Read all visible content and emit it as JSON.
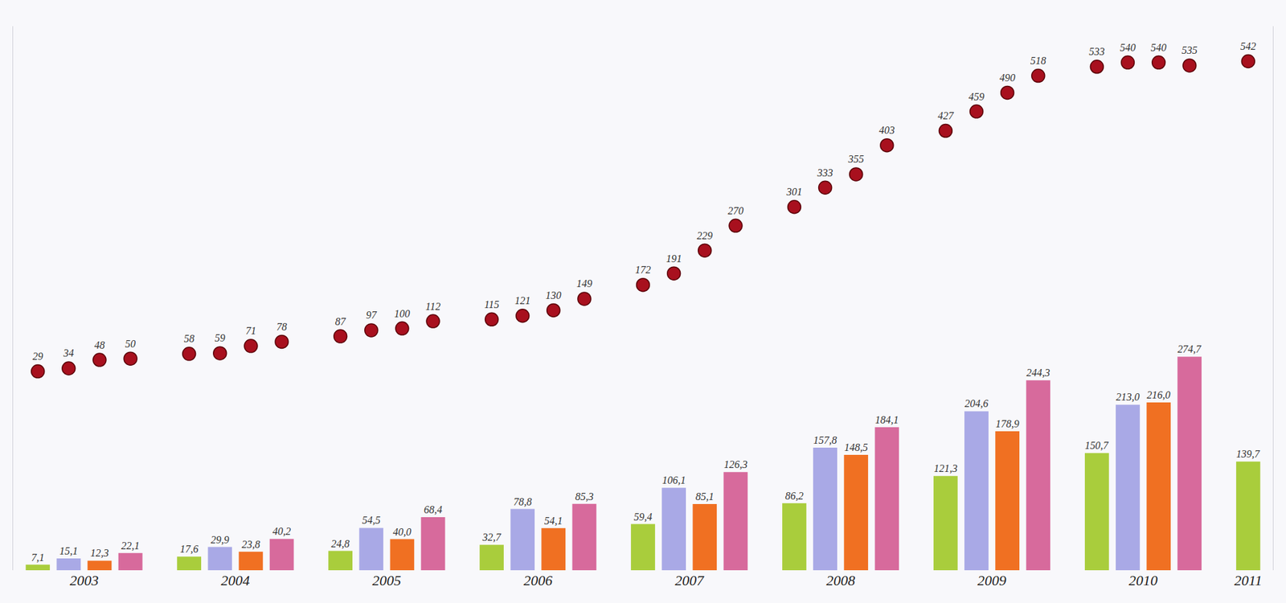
{
  "chart_data": {
    "type": "bar",
    "categories": [
      null,
      "2003",
      null,
      null,
      null,
      "2004",
      null,
      null,
      null,
      "2005",
      null,
      null,
      null,
      "2006",
      null,
      null,
      null,
      "2007",
      null,
      null,
      null,
      "2008",
      null,
      null,
      null,
      "2009",
      null,
      null,
      null,
      "2010",
      null,
      null,
      "2011"
    ],
    "series": [
      {
        "type": "bar",
        "colors": [
          "#a9cd3c",
          "#a9a9e6",
          "#f07022",
          "#d76a9c",
          "#a9cd3c",
          "#a9a9e6",
          "#f07022",
          "#d76a9c",
          "#a9cd3c",
          "#a9a9e6",
          "#f07022",
          "#d76a9c",
          "#a9cd3c",
          "#a9a9e6",
          "#f07022",
          "#d76a9c",
          "#a9cd3c",
          "#a9a9e6",
          "#f07022",
          "#d76a9c",
          "#a9cd3c",
          "#a9a9e6",
          "#f07022",
          "#d76a9c",
          "#a9cd3c",
          "#a9a9e6",
          "#f07022",
          "#d76a9c",
          "#a9cd3c",
          "#a9a9e6",
          "#f07022",
          "#d76a9c",
          "#a9cd3c"
        ],
        "values": [
          7.1,
          15.1,
          12.3,
          22.1,
          17.6,
          29.9,
          23.8,
          40.2,
          24.8,
          54.5,
          40.0,
          68.4,
          32.7,
          78.8,
          54.1,
          85.3,
          59.4,
          106.1,
          85.1,
          126.3,
          86.2,
          157.8,
          148.5,
          184.1,
          121.3,
          204.6,
          178.9,
          244.3,
          150.7,
          213.0,
          216.0,
          274.7,
          139.7
        ],
        "value_labels": [
          "7,1",
          "15,1",
          "12,3",
          "22,1",
          "17,6",
          "29,9",
          "23,8",
          "40,2",
          "24,8",
          "54,5",
          "40,0",
          "68,4",
          "32,7",
          "78,8",
          "54,1",
          "85,3",
          "59,4",
          "106,1",
          "85,1",
          "126,3",
          "86,2",
          "157,8",
          "148,5",
          "184,1",
          "121,3",
          "204,6",
          "178,9",
          "244,3",
          "150,7",
          "213,0",
          "216,0",
          "274,7",
          "139,7"
        ]
      },
      {
        "type": "scatter",
        "axis": "y2",
        "color": "#a8101e",
        "marker": "circle",
        "values": [
          29,
          34,
          48,
          50,
          58,
          59,
          71,
          78,
          87,
          97,
          100,
          112,
          115,
          121,
          130,
          149,
          172,
          191,
          229,
          270,
          301,
          333,
          355,
          403,
          427,
          459,
          490,
          518,
          533,
          540,
          540,
          535,
          542
        ]
      }
    ],
    "ylim": [
      0,
      700
    ],
    "y2lim": [
      -300,
      600
    ],
    "data_labels": true,
    "tick_labels": "x",
    "grid": false
  }
}
